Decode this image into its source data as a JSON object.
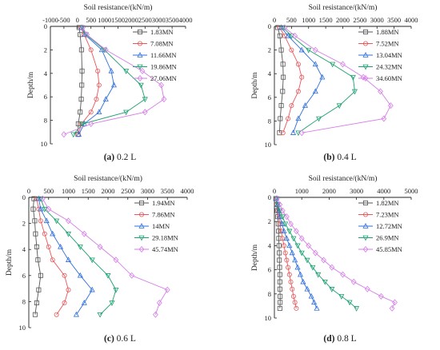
{
  "chart_data": [
    {
      "type": "line",
      "panel_label": "(a)",
      "panel_caption": "0.2 L",
      "xlabel": "Soil resistance/(kN/m)",
      "ylabel": "Depth/m",
      "xlim": [
        -1000,
        4000
      ],
      "ylim": [
        0,
        10
      ],
      "xticks": [
        -1000,
        -500,
        0,
        500,
        1000,
        1500,
        2000,
        2500,
        3000,
        3500,
        4000
      ],
      "yticks": [
        0,
        2,
        4,
        6,
        8,
        10
      ],
      "legend_position": "top-right",
      "depths": [
        0.1,
        0.7,
        2.0,
        3.8,
        5.0,
        6.2,
        7.3,
        8.3,
        9.2
      ],
      "series": [
        {
          "name": "1.83MN",
          "color": "#555555",
          "marker": "square",
          "values": [
            60,
            100,
            150,
            170,
            160,
            140,
            100,
            30,
            20
          ]
        },
        {
          "name": "7.08MN",
          "color": "#e8575a",
          "marker": "circle",
          "values": [
            120,
            250,
            500,
            750,
            800,
            700,
            500,
            150,
            30
          ]
        },
        {
          "name": "11.66MN",
          "color": "#2e6fdc",
          "marker": "triangle-up",
          "values": [
            150,
            280,
            900,
            1250,
            1350,
            1050,
            800,
            250,
            50
          ]
        },
        {
          "name": "19.86MN",
          "color": "#1aa06e",
          "marker": "triangle-down",
          "values": [
            180,
            320,
            1000,
            1800,
            2350,
            2500,
            1800,
            200,
            -150
          ]
        },
        {
          "name": "27.06MN",
          "color": "#d57ce8",
          "marker": "diamond",
          "values": [
            200,
            350,
            1050,
            2400,
            3100,
            3200,
            2500,
            500,
            -500
          ]
        }
      ]
    },
    {
      "type": "line",
      "panel_label": "(b)",
      "panel_caption": "0.4 L",
      "xlabel": "Soil resistance/(kN/m)",
      "ylabel": "Depth/m",
      "xlim": [
        0,
        4000
      ],
      "ylim": [
        0,
        10
      ],
      "xticks": [
        0,
        500,
        1000,
        1500,
        2000,
        2500,
        3000,
        3500,
        4000
      ],
      "yticks": [
        0,
        2,
        4,
        6,
        8,
        10
      ],
      "legend_position": "top-right",
      "depths": [
        0.1,
        0.8,
        2.0,
        3.2,
        4.3,
        5.5,
        6.7,
        7.8,
        9.0
      ],
      "series": [
        {
          "name": "1.88MN",
          "color": "#555555",
          "marker": "square",
          "values": [
            100,
            160,
            200,
            250,
            260,
            240,
            200,
            170,
            150
          ]
        },
        {
          "name": "7.52MN",
          "color": "#e8575a",
          "marker": "circle",
          "values": [
            150,
            300,
            500,
            700,
            800,
            700,
            500,
            400,
            250
          ]
        },
        {
          "name": "13.04MN",
          "color": "#2e6fdc",
          "marker": "triangle-up",
          "values": [
            200,
            400,
            800,
            1200,
            1400,
            1200,
            900,
            700,
            550
          ]
        },
        {
          "name": "24.32MN",
          "color": "#1aa06e",
          "marker": "triangle-down",
          "values": [
            250,
            500,
            1000,
            1700,
            2300,
            2350,
            1900,
            1300,
            700
          ]
        },
        {
          "name": "34.60MN",
          "color": "#d57ce8",
          "marker": "diamond",
          "values": [
            300,
            600,
            1200,
            2000,
            2600,
            3100,
            3400,
            3200,
            800
          ]
        }
      ]
    },
    {
      "type": "line",
      "panel_label": "(c)",
      "panel_caption": "0.6 L",
      "xlabel": "Soil resistance/(kN/m)",
      "ylabel": "Depth/m",
      "xlim": [
        0,
        4000
      ],
      "ylim": [
        0,
        10
      ],
      "xticks": [
        0,
        500,
        1000,
        1500,
        2000,
        2500,
        3000,
        3500,
        4000
      ],
      "yticks": [
        0,
        2,
        4,
        6,
        8,
        10
      ],
      "legend_position": "top-right",
      "depths": [
        0.1,
        0.9,
        1.8,
        2.8,
        3.8,
        4.8,
        6.0,
        7.1,
        8.1,
        9.0
      ],
      "series": [
        {
          "name": "1.94MN",
          "color": "#555555",
          "marker": "square",
          "values": [
            130,
            110,
            150,
            170,
            200,
            230,
            300,
            250,
            200,
            160
          ]
        },
        {
          "name": "7.86MN",
          "color": "#e8575a",
          "marker": "circle",
          "values": [
            200,
            250,
            300,
            400,
            500,
            600,
            900,
            1000,
            900,
            700
          ]
        },
        {
          "name": "14MN",
          "color": "#2e6fdc",
          "marker": "triangle-up",
          "values": [
            250,
            300,
            450,
            600,
            800,
            1000,
            1300,
            1600,
            1400,
            1200
          ]
        },
        {
          "name": "29.18MN",
          "color": "#1aa06e",
          "marker": "triangle-down",
          "values": [
            300,
            400,
            700,
            1000,
            1300,
            1600,
            2000,
            2200,
            2100,
            1800
          ]
        },
        {
          "name": "45.74MN",
          "color": "#d57ce8",
          "marker": "diamond",
          "values": [
            350,
            500,
            1000,
            1400,
            1800,
            2200,
            2600,
            3500,
            3300,
            3200
          ]
        }
      ]
    },
    {
      "type": "line",
      "panel_label": "(d)",
      "panel_caption": "0.8 L",
      "xlabel": "Soil resistance/(kN/m)",
      "ylabel": "Depth/m",
      "xlim": [
        0,
        5000
      ],
      "ylim": [
        0,
        10
      ],
      "xticks": [
        0,
        1000,
        2000,
        3000,
        4000,
        5000
      ],
      "yticks": [
        0,
        2,
        4,
        6,
        8,
        10
      ],
      "legend_position": "top-right",
      "depths": [
        0.1,
        0.6,
        1.1,
        1.6,
        2.2,
        2.8,
        3.4,
        4.0,
        4.6,
        5.2,
        5.8,
        6.4,
        7.0,
        7.6,
        8.2,
        8.7,
        9.2
      ],
      "series": [
        {
          "name": "1.82MN",
          "color": "#555555",
          "marker": "square",
          "values": [
            50,
            80,
            100,
            120,
            140,
            150,
            160,
            170,
            180,
            180,
            190,
            200,
            200,
            200,
            210,
            210,
            200
          ]
        },
        {
          "name": "7.23MN",
          "color": "#e8575a",
          "marker": "circle",
          "values": [
            60,
            90,
            130,
            170,
            200,
            250,
            300,
            350,
            400,
            450,
            500,
            550,
            600,
            650,
            700,
            750,
            800
          ]
        },
        {
          "name": "12.72MN",
          "color": "#2e6fdc",
          "marker": "triangle-up",
          "values": [
            70,
            110,
            160,
            200,
            280,
            350,
            450,
            550,
            650,
            750,
            850,
            950,
            1050,
            1200,
            1350,
            1450,
            1550
          ]
        },
        {
          "name": "26.9MN",
          "color": "#1aa06e",
          "marker": "triangle-down",
          "values": [
            80,
            130,
            200,
            300,
            400,
            550,
            700,
            850,
            1000,
            1200,
            1400,
            1600,
            1850,
            2100,
            2450,
            2750,
            3000
          ]
        },
        {
          "name": "45.85MN",
          "color": "#d57ce8",
          "marker": "diamond",
          "values": [
            100,
            200,
            300,
            450,
            600,
            800,
            1000,
            1250,
            1500,
            1800,
            2100,
            2500,
            2900,
            3400,
            3900,
            4400,
            4300
          ]
        }
      ]
    }
  ]
}
